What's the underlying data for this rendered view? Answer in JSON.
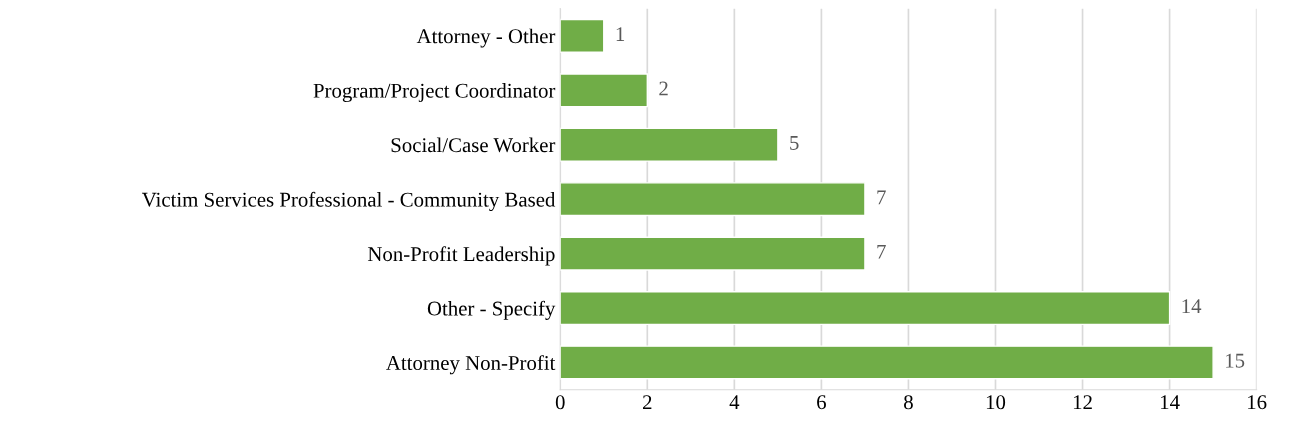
{
  "chart_data": {
    "type": "bar",
    "orientation": "horizontal",
    "categories": [
      "Attorney - Other",
      "Program/Project Coordinator",
      "Social/Case Worker",
      "Victim Services Professional - Community Based",
      "Non-Profit Leadership",
      "Other - Specify",
      "Attorney Non-Profit"
    ],
    "values": [
      1,
      2,
      5,
      7,
      7,
      14,
      15
    ],
    "color": "#70ad47",
    "xlim": [
      0,
      16
    ],
    "xticks": [
      0,
      2,
      4,
      6,
      8,
      10,
      12,
      14,
      16
    ],
    "grid": "x",
    "data_labels": true
  }
}
